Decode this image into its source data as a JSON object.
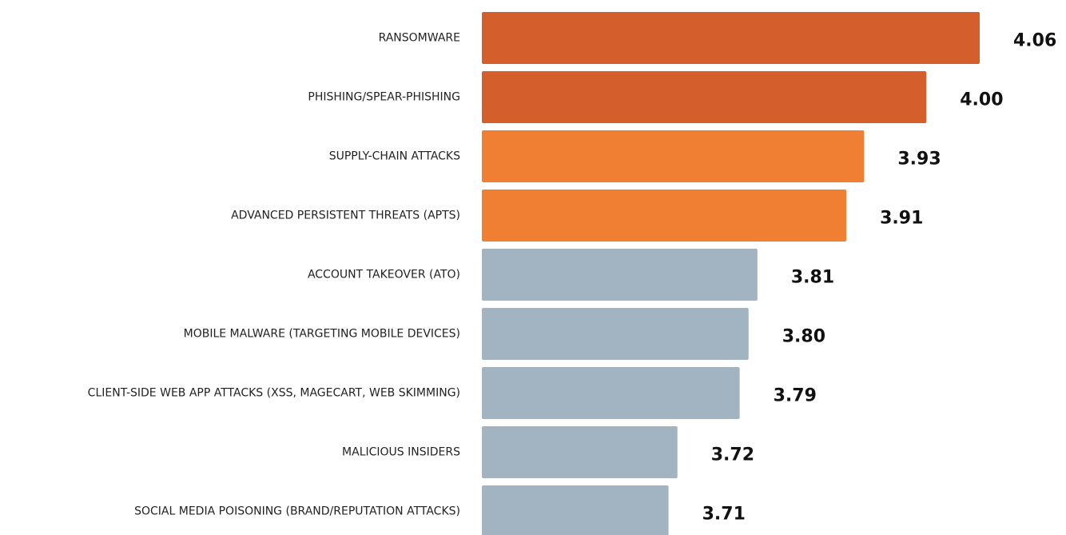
{
  "chart_data": {
    "type": "barh",
    "categories": [
      "RANSOMWARE",
      "PHISHING/SPEAR-PHISHING",
      "SUPPLY-CHAIN ATTACKS",
      "ADVANCED PERSISTENT THREATS (APTS)",
      "ACCOUNT TAKEOVER (ATO)",
      "MOBILE MALWARE (TARGETING MOBILE DEVICES)",
      "CLIENT-SIDE WEB APP ATTACKS (XSS, MAGECART, WEB SKIMMING)",
      "MALICIOUS INSIDERS",
      "SOCIAL MEDIA POISONING (BRAND/REPUTATION ATTACKS)"
    ],
    "values": [
      4.06,
      4.0,
      3.93,
      3.91,
      3.81,
      3.8,
      3.79,
      3.72,
      3.71
    ],
    "value_labels": [
      "4.06",
      "4.00",
      "3.93",
      "3.91",
      "3.81",
      "3.80",
      "3.79",
      "3.72",
      "3.71"
    ],
    "colors": [
      "#d45f2d",
      "#d45f2d",
      "#f07f33",
      "#f07f33",
      "#a2b4c1",
      "#a2b4c1",
      "#a2b4c1",
      "#a2b4c1",
      "#a2b4c1"
    ],
    "xlim": [
      3.5,
      4.06
    ]
  }
}
